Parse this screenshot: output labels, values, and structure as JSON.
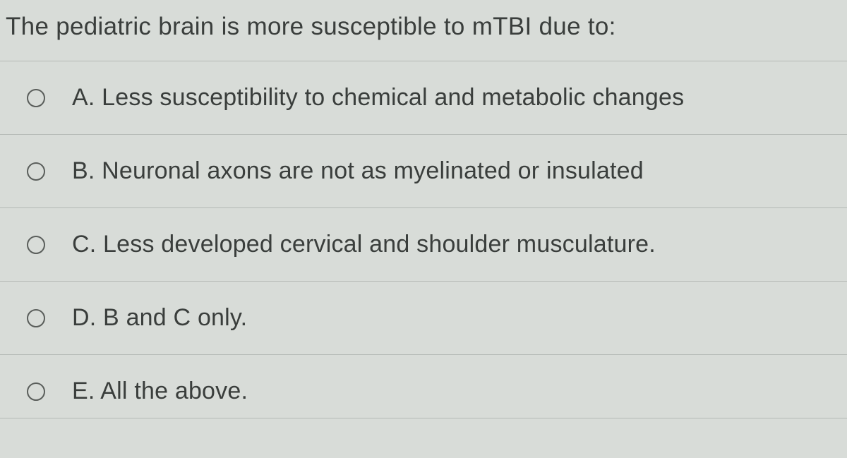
{
  "question": {
    "text": "The pediatric brain is more susceptible to mTBI due to:"
  },
  "options": [
    {
      "label": "A. Less susceptibility to chemical and metabolic changes"
    },
    {
      "label": "B. Neuronal axons are not as myelinated or insulated"
    },
    {
      "label": "C. Less developed cervical and shoulder musculature."
    },
    {
      "label": "D. B and C only."
    },
    {
      "label": "E. All the above."
    }
  ],
  "styling": {
    "background_color": "#d8dcd8",
    "text_color": "#3a3e3c",
    "border_color": "#b5bab6",
    "radio_border_color": "#5a5e5b",
    "question_fontsize": 35,
    "option_fontsize": 34
  }
}
